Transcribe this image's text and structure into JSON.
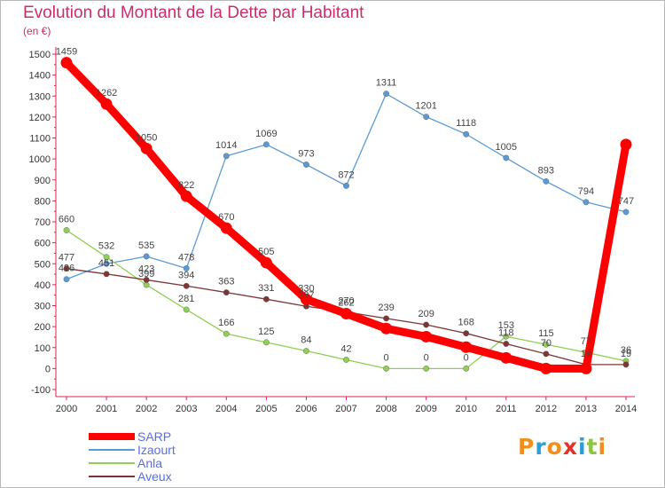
{
  "header": {
    "title": "Evolution du Montant de la Dette par Habitant",
    "subtitle": "(en €)"
  },
  "logo": {
    "text": "Proxiti"
  },
  "chart_data": {
    "type": "line",
    "x": [
      "2000",
      "2001",
      "2002",
      "2003",
      "2004",
      "2005",
      "2006",
      "2007",
      "2008",
      "2009",
      "2010",
      "2011",
      "2012",
      "2013",
      "2014"
    ],
    "ylim": [
      -100,
      1500
    ],
    "yticks": [
      -100,
      0,
      100,
      200,
      300,
      400,
      500,
      600,
      700,
      800,
      900,
      1000,
      1100,
      1200,
      1300,
      1400,
      1500
    ],
    "grid": false,
    "legend_position": "bottom-left",
    "series": [
      {
        "name": "SARP",
        "color": "#ff0000",
        "emphasis": true,
        "values": [
          1459,
          1262,
          1050,
          822,
          670,
          505,
          330,
          262,
          191,
          152,
          102,
          51,
          0,
          0,
          1069
        ],
        "labels": [
          "1459",
          "1262",
          "1050",
          "822",
          "670",
          "505",
          "330",
          "262",
          "",
          "",
          "",
          "",
          "",
          "",
          ""
        ]
      },
      {
        "name": "Izaourt",
        "color": "#5b9bd5",
        "emphasis": false,
        "values": [
          426,
          500,
          535,
          478,
          1014,
          1069,
          973,
          872,
          1311,
          1201,
          1118,
          1005,
          893,
          794,
          747
        ],
        "labels": [
          "426",
          "",
          "535",
          "478",
          "1014",
          "1069",
          "973",
          "872",
          "1311",
          "1201",
          "1118",
          "1005",
          "893",
          "794",
          "747"
        ]
      },
      {
        "name": "Anla",
        "color": "#8fd053",
        "emphasis": false,
        "values": [
          660,
          532,
          399,
          281,
          166,
          125,
          84,
          42,
          0,
          0,
          0,
          153,
          115,
          77,
          36
        ],
        "labels": [
          "660",
          "532",
          "399",
          "281",
          "166",
          "125",
          "84",
          "42",
          "0",
          "0",
          "0",
          "153",
          "115",
          "77",
          "36"
        ]
      },
      {
        "name": "Aveux",
        "color": "#7d3535",
        "emphasis": false,
        "values": [
          477,
          451,
          423,
          394,
          363,
          331,
          297,
          270,
          239,
          209,
          168,
          118,
          70,
          19,
          19
        ],
        "labels": [
          "477",
          "451",
          "423",
          "394",
          "363",
          "331",
          "297",
          "270",
          "239",
          "209",
          "168",
          "118",
          "70",
          "19",
          "19"
        ]
      }
    ]
  }
}
